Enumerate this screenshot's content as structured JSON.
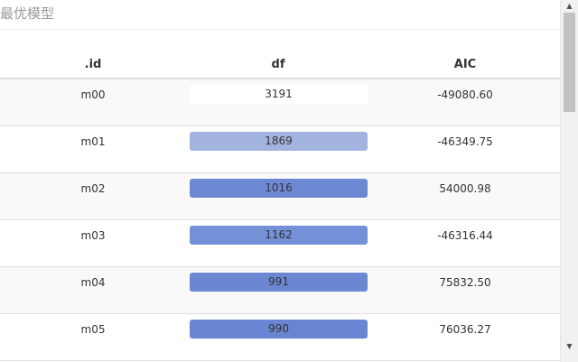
{
  "caption": "最优模型",
  "table": {
    "columns": [
      ".id",
      "df",
      "AIC"
    ],
    "rows": [
      {
        "id": "m00",
        "df": "3191",
        "df_fill": 0.0,
        "aic": "-49080.60",
        "bar_color": "#ffffff"
      },
      {
        "id": "m01",
        "df": "1869",
        "df_fill": 0.59,
        "aic": "-46349.75",
        "bar_color": "#a3b3e0"
      },
      {
        "id": "m02",
        "df": "1016",
        "df_fill": 0.93,
        "aic": "54000.98",
        "bar_color": "#6e89d4"
      },
      {
        "id": "m03",
        "df": "1162",
        "df_fill": 0.89,
        "aic": "-46316.44",
        "bar_color": "#7490d7"
      },
      {
        "id": "m04",
        "df": "991",
        "df_fill": 1.0,
        "aic": "75832.50",
        "bar_color": "#6b87d2"
      },
      {
        "id": "m05",
        "df": "990",
        "df_fill": 1.0,
        "aic": "76036.27",
        "bar_color": "#6a86d2"
      }
    ]
  },
  "scrollbar": {
    "up_icon": "triangle-up",
    "down_icon": "triangle-down"
  }
}
